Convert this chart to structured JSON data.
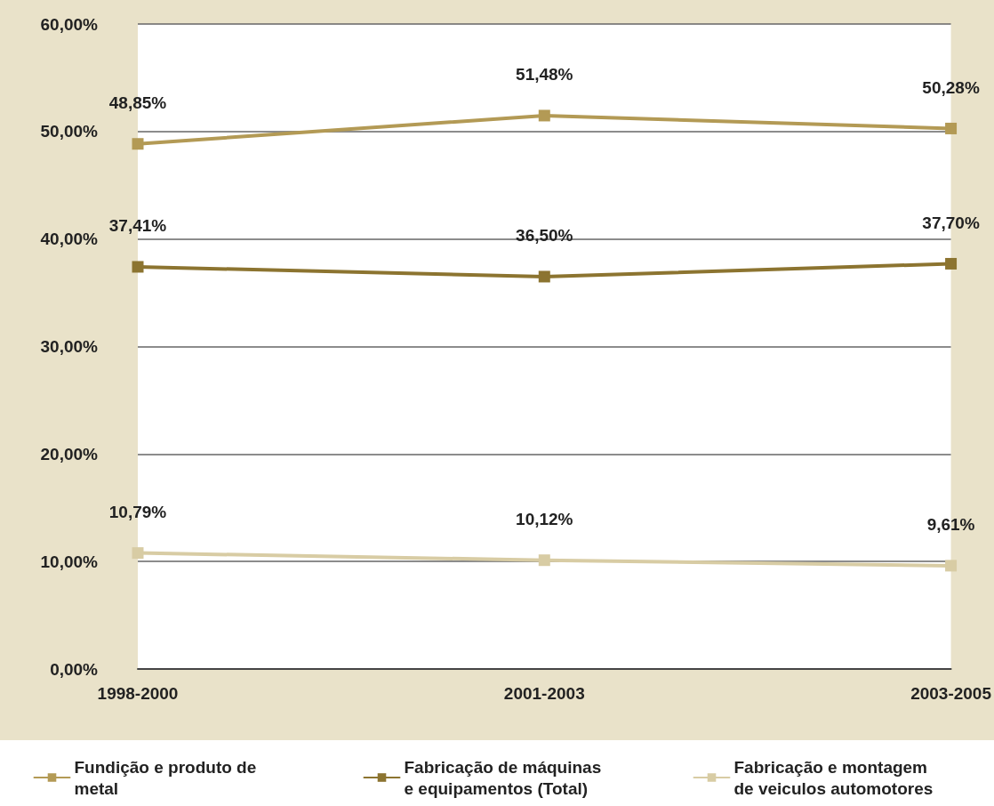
{
  "chart_data": {
    "type": "line",
    "categories": [
      "1998-2000",
      "2001-2003",
      "2003-2005"
    ],
    "series": [
      {
        "name": "Fundição e produto de metal",
        "color": "#b39a55",
        "values": [
          48.85,
          51.48,
          50.28
        ],
        "value_labels": [
          "48,85%",
          "51,48%",
          "50,28%"
        ]
      },
      {
        "name": "Fabricação de máquinas e equipamentos (Total)",
        "color": "#8c7430",
        "values": [
          37.41,
          36.5,
          37.7
        ],
        "value_labels": [
          "37,41%",
          "36,50%",
          "37,70%"
        ]
      },
      {
        "name": "Fabricação e montagem de veiculos automotores",
        "color": "#d8cca4",
        "values": [
          10.79,
          10.12,
          9.61
        ],
        "value_labels": [
          "10,79%",
          "10,12%",
          "9,61%"
        ]
      }
    ],
    "ylim": [
      0,
      60
    ],
    "yticks": [
      {
        "value": 0,
        "label": "0,00%"
      },
      {
        "value": 10,
        "label": "10,00%"
      },
      {
        "value": 20,
        "label": "20,00%"
      },
      {
        "value": 30,
        "label": "30,00%"
      },
      {
        "value": 40,
        "label": "40,00%"
      },
      {
        "value": 50,
        "label": "50,00%"
      },
      {
        "value": 60,
        "label": "60,00%"
      }
    ],
    "grid": "y",
    "legend": "bottom",
    "marker": "square",
    "line_style": "solid"
  }
}
